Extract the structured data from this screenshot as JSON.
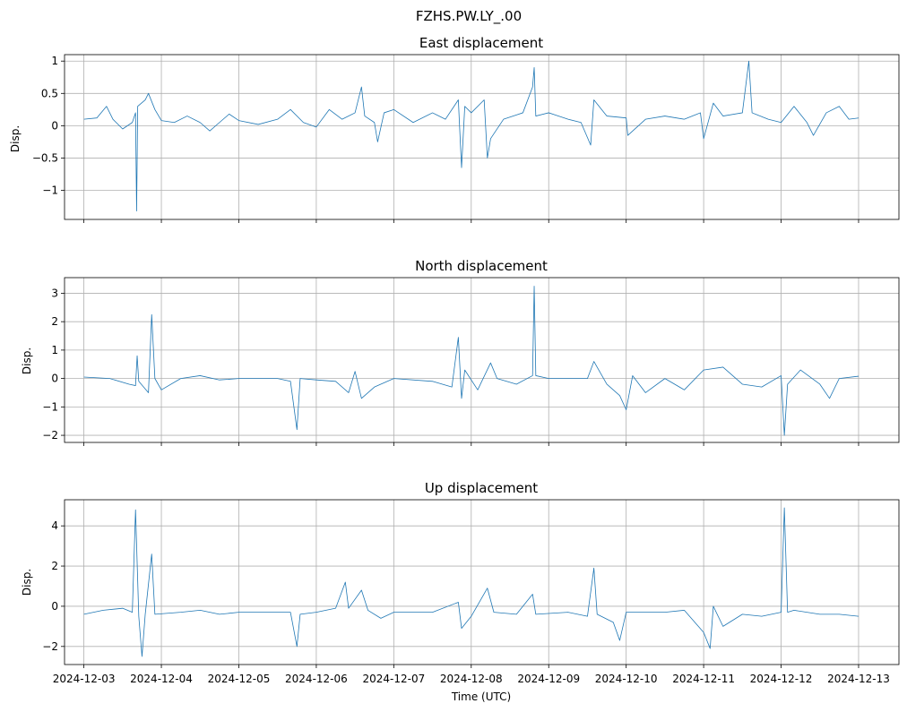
{
  "figure": {
    "suptitle": "FZHS.PW.LY_.00",
    "xlabel": "Time (UTC)",
    "line_color": "#1f77b4",
    "grid_color": "#b0b0b0"
  },
  "chart_data": [
    {
      "type": "line",
      "title": "East displacement",
      "ylabel": "Disp.",
      "xlim": [
        "2024-12-02T18:00",
        "2024-12-13T12:30"
      ],
      "ylim": [
        -1.45,
        1.1
      ],
      "yticks": [
        -1.0,
        -0.5,
        0.0,
        0.5,
        1.0
      ],
      "xticks": [
        "2024-12-03",
        "2024-12-04",
        "2024-12-05",
        "2024-12-06",
        "2024-12-07",
        "2024-12-08",
        "2024-12-09",
        "2024-12-10",
        "2024-12-11",
        "2024-12-12",
        "2024-12-13"
      ],
      "show_xtick_labels": false,
      "grid": true,
      "series": [
        {
          "values": [
            [
              "2024-12-03T00:00",
              0.1
            ],
            [
              "2024-12-03T04:00",
              0.12
            ],
            [
              "2024-12-03T07:00",
              0.3
            ],
            [
              "2024-12-03T09:00",
              0.1
            ],
            [
              "2024-12-03T12:00",
              -0.05
            ],
            [
              "2024-12-03T15:00",
              0.05
            ],
            [
              "2024-12-03T16:00",
              0.2
            ],
            [
              "2024-12-03T16:20",
              -1.32
            ],
            [
              "2024-12-03T16:40",
              0.3
            ],
            [
              "2024-12-03T19:00",
              0.4
            ],
            [
              "2024-12-03T20:00",
              0.5
            ],
            [
              "2024-12-03T22:00",
              0.25
            ],
            [
              "2024-12-04T00:00",
              0.08
            ],
            [
              "2024-12-04T04:00",
              0.05
            ],
            [
              "2024-12-04T08:00",
              0.15
            ],
            [
              "2024-12-04T12:00",
              0.05
            ],
            [
              "2024-12-04T15:00",
              -0.08
            ],
            [
              "2024-12-04T18:00",
              0.05
            ],
            [
              "2024-12-04T21:00",
              0.18
            ],
            [
              "2024-12-05T00:00",
              0.08
            ],
            [
              "2024-12-05T06:00",
              0.02
            ],
            [
              "2024-12-05T12:00",
              0.1
            ],
            [
              "2024-12-05T16:00",
              0.25
            ],
            [
              "2024-12-05T20:00",
              0.05
            ],
            [
              "2024-12-06T00:00",
              -0.02
            ],
            [
              "2024-12-06T04:00",
              0.25
            ],
            [
              "2024-12-06T08:00",
              0.1
            ],
            [
              "2024-12-06T12:00",
              0.2
            ],
            [
              "2024-12-06T14:00",
              0.6
            ],
            [
              "2024-12-06T15:00",
              0.15
            ],
            [
              "2024-12-06T18:00",
              0.05
            ],
            [
              "2024-12-06T19:00",
              -0.25
            ],
            [
              "2024-12-06T21:00",
              0.2
            ],
            [
              "2024-12-07T00:00",
              0.25
            ],
            [
              "2024-12-07T06:00",
              0.05
            ],
            [
              "2024-12-07T12:00",
              0.2
            ],
            [
              "2024-12-07T16:00",
              0.1
            ],
            [
              "2024-12-07T20:00",
              0.4
            ],
            [
              "2024-12-07T21:00",
              -0.65
            ],
            [
              "2024-12-07T22:00",
              0.3
            ],
            [
              "2024-12-08T00:00",
              0.2
            ],
            [
              "2024-12-08T04:00",
              0.4
            ],
            [
              "2024-12-08T05:00",
              -0.5
            ],
            [
              "2024-12-08T06:00",
              -0.2
            ],
            [
              "2024-12-08T10:00",
              0.1
            ],
            [
              "2024-12-08T16:00",
              0.2
            ],
            [
              "2024-12-08T19:00",
              0.6
            ],
            [
              "2024-12-08T19:30",
              0.9
            ],
            [
              "2024-12-08T20:00",
              0.15
            ],
            [
              "2024-12-09T00:00",
              0.2
            ],
            [
              "2024-12-09T06:00",
              0.1
            ],
            [
              "2024-12-09T10:00",
              0.05
            ],
            [
              "2024-12-09T13:00",
              -0.3
            ],
            [
              "2024-12-09T14:00",
              0.4
            ],
            [
              "2024-12-09T18:00",
              0.15
            ],
            [
              "2024-12-10T00:00",
              0.12
            ],
            [
              "2024-12-10T00:30",
              -0.15
            ],
            [
              "2024-12-10T06:00",
              0.1
            ],
            [
              "2024-12-10T12:00",
              0.15
            ],
            [
              "2024-12-10T18:00",
              0.1
            ],
            [
              "2024-12-10T23:00",
              0.2
            ],
            [
              "2024-12-11T00:00",
              -0.2
            ],
            [
              "2024-12-11T03:00",
              0.35
            ],
            [
              "2024-12-11T06:00",
              0.15
            ],
            [
              "2024-12-11T12:00",
              0.2
            ],
            [
              "2024-12-11T14:00",
              1.0
            ],
            [
              "2024-12-11T15:00",
              0.2
            ],
            [
              "2024-12-11T20:00",
              0.1
            ],
            [
              "2024-12-12T00:00",
              0.05
            ],
            [
              "2024-12-12T04:00",
              0.3
            ],
            [
              "2024-12-12T08:00",
              0.05
            ],
            [
              "2024-12-12T10:00",
              -0.15
            ],
            [
              "2024-12-12T14:00",
              0.2
            ],
            [
              "2024-12-12T18:00",
              0.3
            ],
            [
              "2024-12-12T21:00",
              0.1
            ],
            [
              "2024-12-13T00:00",
              0.12
            ]
          ]
        }
      ]
    },
    {
      "type": "line",
      "title": "North displacement",
      "ylabel": "Disp.",
      "xlim": [
        "2024-12-02T18:00",
        "2024-12-13T12:30"
      ],
      "ylim": [
        -2.25,
        3.55
      ],
      "yticks": [
        -2,
        -1,
        0,
        1,
        2,
        3
      ],
      "xticks": [
        "2024-12-03",
        "2024-12-04",
        "2024-12-05",
        "2024-12-06",
        "2024-12-07",
        "2024-12-08",
        "2024-12-09",
        "2024-12-10",
        "2024-12-11",
        "2024-12-12",
        "2024-12-13"
      ],
      "show_xtick_labels": false,
      "grid": true,
      "series": [
        {
          "values": [
            [
              "2024-12-03T00:00",
              0.05
            ],
            [
              "2024-12-03T08:00",
              0.0
            ],
            [
              "2024-12-03T14:00",
              -0.2
            ],
            [
              "2024-12-03T16:00",
              -0.25
            ],
            [
              "2024-12-03T16:30",
              0.8
            ],
            [
              "2024-12-03T17:00",
              -0.1
            ],
            [
              "2024-12-03T20:00",
              -0.5
            ],
            [
              "2024-12-03T21:00",
              2.25
            ],
            [
              "2024-12-03T22:00",
              0.0
            ],
            [
              "2024-12-04T00:00",
              -0.4
            ],
            [
              "2024-12-04T06:00",
              0.0
            ],
            [
              "2024-12-04T12:00",
              0.1
            ],
            [
              "2024-12-04T18:00",
              -0.05
            ],
            [
              "2024-12-05T00:00",
              0.0
            ],
            [
              "2024-12-05T12:00",
              0.0
            ],
            [
              "2024-12-05T16:00",
              -0.1
            ],
            [
              "2024-12-05T18:00",
              -1.8
            ],
            [
              "2024-12-05T19:00",
              0.0
            ],
            [
              "2024-12-06T00:00",
              -0.05
            ],
            [
              "2024-12-06T06:00",
              -0.1
            ],
            [
              "2024-12-06T10:00",
              -0.5
            ],
            [
              "2024-12-06T12:00",
              0.25
            ],
            [
              "2024-12-06T14:00",
              -0.7
            ],
            [
              "2024-12-06T18:00",
              -0.3
            ],
            [
              "2024-12-07T00:00",
              0.0
            ],
            [
              "2024-12-07T12:00",
              -0.1
            ],
            [
              "2024-12-07T18:00",
              -0.3
            ],
            [
              "2024-12-07T20:00",
              1.45
            ],
            [
              "2024-12-07T21:00",
              -0.7
            ],
            [
              "2024-12-07T22:00",
              0.3
            ],
            [
              "2024-12-08T02:00",
              -0.4
            ],
            [
              "2024-12-08T06:00",
              0.55
            ],
            [
              "2024-12-08T08:00",
              0.0
            ],
            [
              "2024-12-08T14:00",
              -0.2
            ],
            [
              "2024-12-08T19:00",
              0.1
            ],
            [
              "2024-12-08T19:30",
              3.25
            ],
            [
              "2024-12-08T20:00",
              0.1
            ],
            [
              "2024-12-09T00:00",
              0.0
            ],
            [
              "2024-12-09T12:00",
              0.0
            ],
            [
              "2024-12-09T14:00",
              0.6
            ],
            [
              "2024-12-09T18:00",
              -0.2
            ],
            [
              "2024-12-09T22:00",
              -0.6
            ],
            [
              "2024-12-10T00:00",
              -1.1
            ],
            [
              "2024-12-10T02:00",
              0.1
            ],
            [
              "2024-12-10T06:00",
              -0.5
            ],
            [
              "2024-12-10T12:00",
              0.0
            ],
            [
              "2024-12-10T18:00",
              -0.4
            ],
            [
              "2024-12-11T00:00",
              0.3
            ],
            [
              "2024-12-11T06:00",
              0.4
            ],
            [
              "2024-12-11T12:00",
              -0.2
            ],
            [
              "2024-12-11T18:00",
              -0.3
            ],
            [
              "2024-12-12T00:00",
              0.1
            ],
            [
              "2024-12-12T01:00",
              -2.0
            ],
            [
              "2024-12-12T02:00",
              -0.2
            ],
            [
              "2024-12-12T06:00",
              0.3
            ],
            [
              "2024-12-12T12:00",
              -0.2
            ],
            [
              "2024-12-12T15:00",
              -0.7
            ],
            [
              "2024-12-12T18:00",
              0.0
            ],
            [
              "2024-12-13T00:00",
              0.08
            ]
          ]
        }
      ]
    },
    {
      "type": "line",
      "title": "Up displacement",
      "ylabel": "Disp.",
      "xlim": [
        "2024-12-02T18:00",
        "2024-12-13T12:30"
      ],
      "ylim": [
        -2.9,
        5.3
      ],
      "yticks": [
        -2,
        0,
        2,
        4
      ],
      "xticks": [
        "2024-12-03",
        "2024-12-04",
        "2024-12-05",
        "2024-12-06",
        "2024-12-07",
        "2024-12-08",
        "2024-12-09",
        "2024-12-10",
        "2024-12-11",
        "2024-12-12",
        "2024-12-13"
      ],
      "xtick_labels": [
        "2024-12-03",
        "2024-12-04",
        "2024-12-05",
        "2024-12-06",
        "2024-12-07",
        "2024-12-08",
        "2024-12-09",
        "2024-12-10",
        "2024-12-11",
        "2024-12-12",
        "2024-12-13"
      ],
      "show_xtick_labels": true,
      "grid": true,
      "series": [
        {
          "values": [
            [
              "2024-12-03T00:00",
              -0.4
            ],
            [
              "2024-12-03T06:00",
              -0.2
            ],
            [
              "2024-12-03T12:00",
              -0.1
            ],
            [
              "2024-12-03T15:00",
              -0.3
            ],
            [
              "2024-12-03T16:00",
              4.8
            ],
            [
              "2024-12-03T17:00",
              -0.5
            ],
            [
              "2024-12-03T18:00",
              -2.5
            ],
            [
              "2024-12-03T19:00",
              -0.4
            ],
            [
              "2024-12-03T21:00",
              2.6
            ],
            [
              "2024-12-03T22:00",
              -0.4
            ],
            [
              "2024-12-04T06:00",
              -0.3
            ],
            [
              "2024-12-04T12:00",
              -0.2
            ],
            [
              "2024-12-04T18:00",
              -0.4
            ],
            [
              "2024-12-05T00:00",
              -0.3
            ],
            [
              "2024-12-05T12:00",
              -0.3
            ],
            [
              "2024-12-05T16:00",
              -0.3
            ],
            [
              "2024-12-05T18:00",
              -2.0
            ],
            [
              "2024-12-05T19:00",
              -0.4
            ],
            [
              "2024-12-06T00:00",
              -0.3
            ],
            [
              "2024-12-06T06:00",
              -0.1
            ],
            [
              "2024-12-06T09:00",
              1.2
            ],
            [
              "2024-12-06T10:00",
              -0.1
            ],
            [
              "2024-12-06T14:00",
              0.8
            ],
            [
              "2024-12-06T16:00",
              -0.2
            ],
            [
              "2024-12-06T20:00",
              -0.6
            ],
            [
              "2024-12-07T00:00",
              -0.3
            ],
            [
              "2024-12-07T12:00",
              -0.3
            ],
            [
              "2024-12-07T20:00",
              0.2
            ],
            [
              "2024-12-07T21:00",
              -1.1
            ],
            [
              "2024-12-08T00:00",
              -0.5
            ],
            [
              "2024-12-08T05:00",
              0.9
            ],
            [
              "2024-12-08T07:00",
              -0.3
            ],
            [
              "2024-12-08T14:00",
              -0.4
            ],
            [
              "2024-12-08T19:00",
              0.6
            ],
            [
              "2024-12-08T20:00",
              -0.4
            ],
            [
              "2024-12-09T06:00",
              -0.3
            ],
            [
              "2024-12-09T12:00",
              -0.5
            ],
            [
              "2024-12-09T14:00",
              1.9
            ],
            [
              "2024-12-09T15:00",
              -0.4
            ],
            [
              "2024-12-09T20:00",
              -0.8
            ],
            [
              "2024-12-09T22:00",
              -1.7
            ],
            [
              "2024-12-10T00:00",
              -0.3
            ],
            [
              "2024-12-10T06:00",
              -0.3
            ],
            [
              "2024-12-10T12:00",
              -0.3
            ],
            [
              "2024-12-10T18:00",
              -0.2
            ],
            [
              "2024-12-11T00:00",
              -1.3
            ],
            [
              "2024-12-11T02:00",
              -2.1
            ],
            [
              "2024-12-11T03:00",
              0.0
            ],
            [
              "2024-12-11T06:00",
              -1.0
            ],
            [
              "2024-12-11T12:00",
              -0.4
            ],
            [
              "2024-12-11T18:00",
              -0.5
            ],
            [
              "2024-12-12T00:00",
              -0.3
            ],
            [
              "2024-12-12T01:00",
              4.9
            ],
            [
              "2024-12-12T02:00",
              -0.3
            ],
            [
              "2024-12-12T04:00",
              -0.2
            ],
            [
              "2024-12-12T12:00",
              -0.4
            ],
            [
              "2024-12-12T18:00",
              -0.4
            ],
            [
              "2024-12-13T00:00",
              -0.5
            ]
          ]
        }
      ]
    }
  ]
}
